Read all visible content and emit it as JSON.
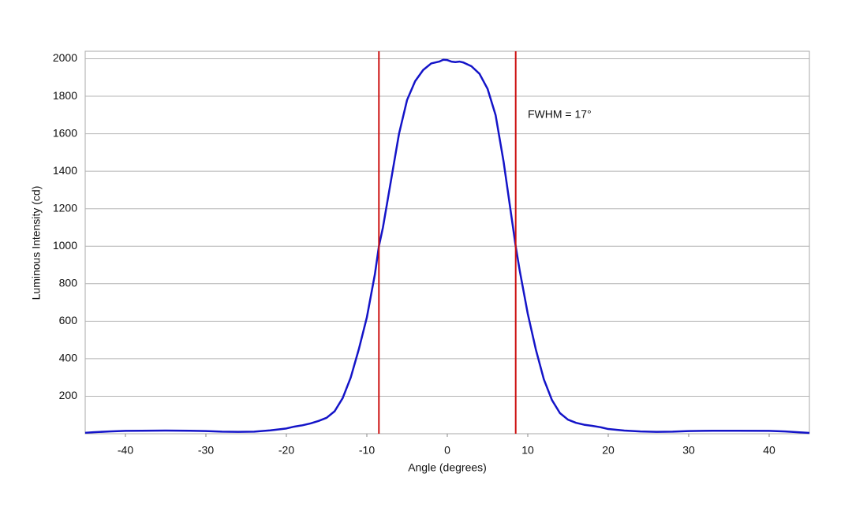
{
  "chart_data": {
    "type": "line",
    "x_label": "Angle (degrees)",
    "y_label": "Luminous Intensity (cd)",
    "x": [
      -45,
      -44,
      -42,
      -40,
      -38,
      -35,
      -32,
      -30,
      -28,
      -26,
      -24,
      -22,
      -20,
      -19,
      -18,
      -17,
      -16,
      -15,
      -14,
      -13,
      -12,
      -11,
      -10,
      -9,
      -8.5,
      -8,
      -7,
      -6,
      -5,
      -4,
      -3,
      -2,
      -1,
      -0.5,
      0,
      0.5,
      1,
      1.5,
      2,
      3,
      4,
      5,
      6,
      7,
      8,
      8.5,
      9,
      10,
      11,
      12,
      13,
      14,
      15,
      16,
      17,
      18,
      19,
      20,
      22,
      24,
      26,
      28,
      30,
      33,
      36,
      40,
      42,
      44,
      45
    ],
    "series": [
      {
        "color": "#1414c8",
        "values": [
          5,
          8,
          12,
          15,
          16,
          17,
          16,
          14,
          11,
          10,
          11,
          18,
          28,
          38,
          45,
          55,
          68,
          85,
          120,
          190,
          300,
          450,
          620,
          850,
          1000,
          1100,
          1350,
          1600,
          1780,
          1880,
          1940,
          1975,
          1985,
          1995,
          1993,
          1985,
          1982,
          1985,
          1980,
          1960,
          1920,
          1840,
          1700,
          1450,
          1150,
          1000,
          870,
          640,
          450,
          290,
          180,
          110,
          75,
          58,
          48,
          42,
          35,
          25,
          17,
          12,
          10,
          11,
          14,
          16,
          16,
          15,
          12,
          7,
          4
        ]
      }
    ],
    "vlines": [
      -8.5,
      8.5
    ],
    "vline_color": "#cc1111",
    "annotation": {
      "text": "FWHM = 17°",
      "x": 10,
      "y": 1700
    },
    "xlim": [
      -45,
      45
    ],
    "ylim": [
      0,
      2040
    ],
    "xticks": [
      -40,
      -30,
      -20,
      -10,
      0,
      10,
      20,
      30,
      40
    ],
    "yticks": [
      200,
      400,
      600,
      800,
      1000,
      1200,
      1400,
      1600,
      1800,
      2000
    ],
    "grid": true
  }
}
